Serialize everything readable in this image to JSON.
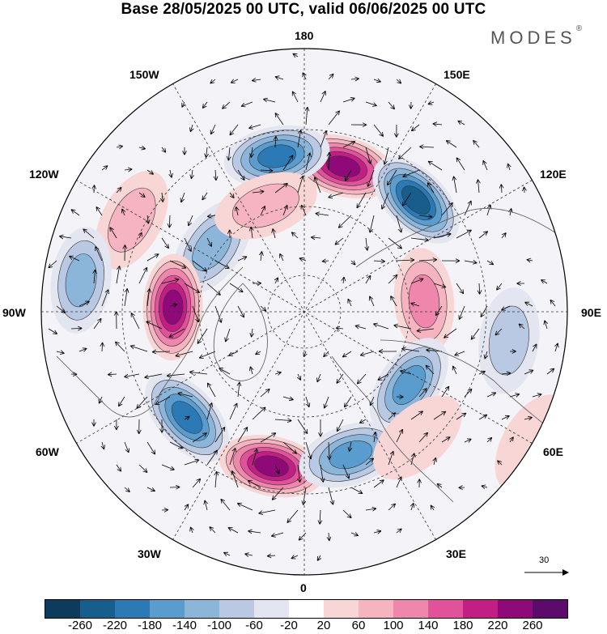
{
  "title": "Base 28/05/2025 00 UTC, valid 06/06/2025 00 UTC",
  "brand": {
    "name": "MODES",
    "mark": "®"
  },
  "longitude_labels": {
    "lon_180": "180",
    "lon_150e": "150E",
    "lon_120e": "120E",
    "lon_90e": "90E",
    "lon_60e": "60E",
    "lon_30e": "30E",
    "lon_0": "0",
    "lon_30w": "30W",
    "lon_60w": "60W",
    "lon_90w": "90W",
    "lon_120w": "120W",
    "lon_150w": "150W"
  },
  "reference_vector": {
    "label": "30"
  },
  "colorbar": {
    "colors": [
      "#0d3b5e",
      "#175e8d",
      "#2b7ab5",
      "#5a9ccd",
      "#8bb6da",
      "#b9c9e4",
      "#e3e5f1",
      "#ffffff",
      "#f9d6d6",
      "#f6b4c1",
      "#ef87ac",
      "#e0529a",
      "#c21f84",
      "#8f0a78",
      "#5c0a6b"
    ],
    "ticks": [
      "-260",
      "-220",
      "-180",
      "-140",
      "-100",
      "-60",
      "-20",
      "20",
      "60",
      "100",
      "140",
      "180",
      "220",
      "260"
    ]
  },
  "anomalies": [
    {
      "lat": 50,
      "lon": 165,
      "value": 240
    },
    {
      "lat": 48,
      "lon": -170,
      "value": -190
    },
    {
      "lat": 48,
      "lon": 135,
      "value": -220
    },
    {
      "lat": 38,
      "lon": -118,
      "value": 60
    },
    {
      "lat": 60,
      "lon": -125,
      "value": -120
    },
    {
      "lat": 58,
      "lon": 95,
      "value": 130
    },
    {
      "lat": 55,
      "lon": -92,
      "value": 240
    },
    {
      "lat": 30,
      "lon": -98,
      "value": -120
    },
    {
      "lat": 48,
      "lon": -48,
      "value": -180
    },
    {
      "lat": 48,
      "lon": -12,
      "value": 230
    },
    {
      "lat": 50,
      "lon": 18,
      "value": -150
    },
    {
      "lat": 56,
      "lon": 55,
      "value": -150
    },
    {
      "lat": 35,
      "lon": 82,
      "value": -70
    },
    {
      "lat": 45,
      "lon": 42,
      "value": 50
    },
    {
      "lat": 20,
      "lon": 60,
      "value": 30
    },
    {
      "lat": 60,
      "lon": -160,
      "value": 60
    }
  ]
}
